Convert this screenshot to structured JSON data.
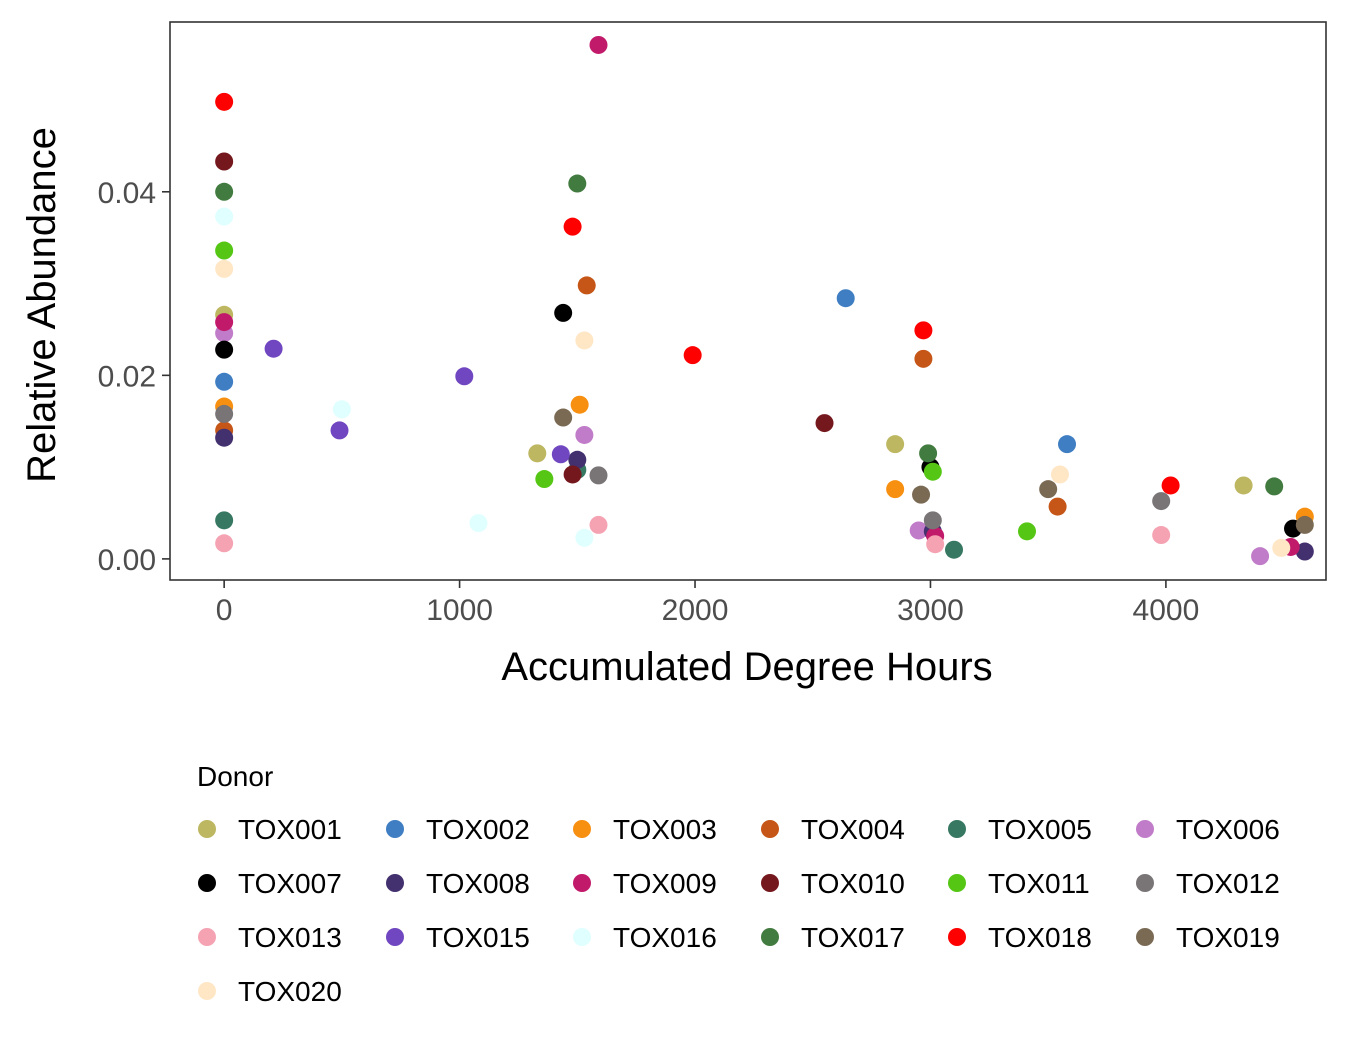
{
  "chart_data": {
    "type": "scatter",
    "title": "",
    "xlabel": "Accumulated Degree Hours",
    "ylabel": "Relative Abundance",
    "xlim": [
      -230,
      4680
    ],
    "ylim": [
      -0.0023,
      0.0585
    ],
    "x_ticks": [
      0,
      1000,
      2000,
      3000,
      4000
    ],
    "x_tick_labels": [
      "0",
      "1000",
      "2000",
      "3000",
      "4000"
    ],
    "y_ticks": [
      0,
      0.02,
      0.04
    ],
    "y_tick_labels": [
      "0.00",
      "0.02",
      "0.04"
    ],
    "grid": false,
    "legend_title": "Donor",
    "legend_position": "bottom",
    "series": [
      {
        "name": "TOX001",
        "color": "#BDB761",
        "points": [
          [
            0,
            0.0266
          ],
          [
            1330,
            0.0115
          ],
          [
            2850,
            0.0125
          ],
          [
            4330,
            0.008
          ]
        ]
      },
      {
        "name": "TOX002",
        "color": "#3F7EC3",
        "points": [
          [
            0,
            0.0193
          ],
          [
            2640,
            0.0284
          ],
          [
            3580,
            0.0125
          ]
        ]
      },
      {
        "name": "TOX003",
        "color": "#F78F10",
        "points": [
          [
            0,
            0.0166
          ],
          [
            1510,
            0.0168
          ],
          [
            2850,
            0.0076
          ],
          [
            4590,
            0.0046
          ]
        ]
      },
      {
        "name": "TOX004",
        "color": "#C55617",
        "points": [
          [
            0,
            0.014
          ],
          [
            1540,
            0.0298
          ],
          [
            2970,
            0.0218
          ],
          [
            3540,
            0.0057
          ]
        ]
      },
      {
        "name": "TOX005",
        "color": "#377862",
        "points": [
          [
            0,
            0.0042
          ],
          [
            1500,
            0.0097
          ],
          [
            3100,
            0.001
          ]
        ]
      },
      {
        "name": "TOX006",
        "color": "#C07CC8",
        "points": [
          [
            0,
            0.0246
          ],
          [
            1530,
            0.0135
          ],
          [
            2950,
            0.0031
          ],
          [
            4400,
            0.0003
          ]
        ]
      },
      {
        "name": "TOX007",
        "color": "#000000",
        "points": [
          [
            0,
            0.0228
          ],
          [
            1440,
            0.0268
          ],
          [
            3000,
            0.01
          ],
          [
            4540,
            0.0033
          ]
        ]
      },
      {
        "name": "TOX008",
        "color": "#43306E",
        "points": [
          [
            0,
            0.0132
          ],
          [
            1500,
            0.0108
          ],
          [
            3010,
            0.003
          ],
          [
            4590,
            0.0008
          ]
        ]
      },
      {
        "name": "TOX009",
        "color": "#C21A6B",
        "points": [
          [
            0,
            0.0258
          ],
          [
            1590,
            0.056
          ],
          [
            3020,
            0.0025
          ],
          [
            4530,
            0.0013
          ]
        ]
      },
      {
        "name": "TOX010",
        "color": "#75181E",
        "points": [
          [
            0,
            0.0433
          ],
          [
            1480,
            0.0092
          ],
          [
            2550,
            0.0148
          ]
        ]
      },
      {
        "name": "TOX011",
        "color": "#55C614",
        "points": [
          [
            0,
            0.0336
          ],
          [
            1360,
            0.0087
          ],
          [
            3010,
            0.0095
          ],
          [
            3410,
            0.003
          ]
        ]
      },
      {
        "name": "TOX012",
        "color": "#797476",
        "points": [
          [
            0,
            0.0158
          ],
          [
            1590,
            0.0091
          ],
          [
            3010,
            0.0042
          ],
          [
            3980,
            0.0063
          ]
        ]
      },
      {
        "name": "TOX013",
        "color": "#F5A3B3",
        "points": [
          [
            0,
            0.0017
          ],
          [
            1590,
            0.0037
          ],
          [
            3020,
            0.0016
          ],
          [
            3980,
            0.0026
          ]
        ]
      },
      {
        "name": "TOX015",
        "color": "#7047C0",
        "points": [
          [
            210,
            0.0229
          ],
          [
            490,
            0.014
          ],
          [
            1020,
            0.0199
          ],
          [
            1430,
            0.0114
          ]
        ]
      },
      {
        "name": "TOX016",
        "color": "#E0FFFF",
        "points": [
          [
            0,
            0.0373
          ],
          [
            500,
            0.0163
          ],
          [
            1080,
            0.0039
          ],
          [
            1530,
            0.0023
          ]
        ]
      },
      {
        "name": "TOX017",
        "color": "#427B3F",
        "points": [
          [
            0,
            0.04
          ],
          [
            1500,
            0.0409
          ],
          [
            2990,
            0.0115
          ],
          [
            4460,
            0.0079
          ]
        ]
      },
      {
        "name": "TOX018",
        "color": "#FF0000",
        "points": [
          [
            0,
            0.0498
          ],
          [
            1480,
            0.0362
          ],
          [
            1990,
            0.0222
          ],
          [
            2970,
            0.0249
          ],
          [
            4020,
            0.008
          ]
        ]
      },
      {
        "name": "TOX019",
        "color": "#7A6A54",
        "points": [
          [
            1440,
            0.0154
          ],
          [
            2960,
            0.007
          ],
          [
            3500,
            0.0076
          ],
          [
            4590,
            0.0037
          ]
        ]
      },
      {
        "name": "TOX020",
        "color": "#FFE7C6",
        "points": [
          [
            0,
            0.0316
          ],
          [
            1530,
            0.0238
          ],
          [
            3550,
            0.0092
          ],
          [
            4490,
            0.0012
          ]
        ]
      }
    ]
  }
}
